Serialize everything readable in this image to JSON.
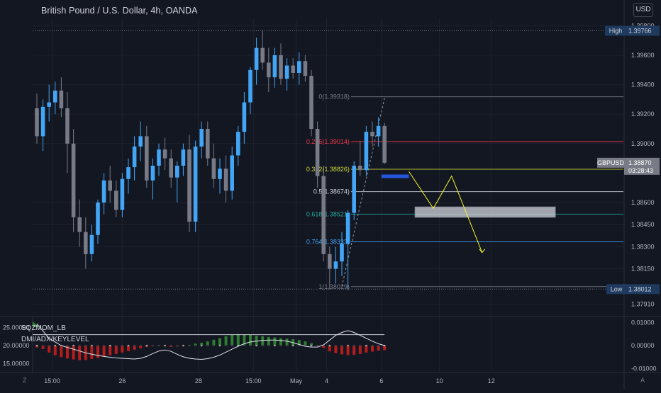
{
  "header": {
    "title": "British Pound / U.S. Dollar, 4h, OANDA",
    "currency_button": "USD"
  },
  "colors": {
    "background": "#131722",
    "bull": "#42a5f5",
    "bear": "#787b86",
    "grid": "#1e222d",
    "fib_0": "#787b86",
    "fib_0236": "#f23645",
    "fib_0382": "#cddc39",
    "fib_05": "#d1d4dc",
    "fib_0618": "#26a69a",
    "fib_0764": "#42a5f5",
    "projection": "#f5f52b",
    "zone": "#d1d4dc",
    "hist_pos": "#2e7d32",
    "hist_neg": "#b71c1c"
  },
  "chart_data": [
    {
      "type": "candlestick",
      "title": "British Pound / U.S. Dollar, 4h, OANDA",
      "symbol": "GBPUSD",
      "ylim": [
        1.3785,
        1.3985
      ],
      "y_ticks": [
        "1.39800",
        "1.39600",
        "1.39400",
        "1.39200",
        "1.39000",
        "1.38600",
        "1.38450",
        "1.38300",
        "1.38150",
        "1.37910"
      ],
      "y_tick_values": [
        1.398,
        1.396,
        1.394,
        1.392,
        1.39,
        1.386,
        1.3845,
        1.383,
        1.3815,
        1.3791
      ],
      "x_ticks": [
        "15:00",
        "26",
        "28",
        "15:00",
        "May",
        "4",
        "6",
        "10",
        "12"
      ],
      "x_tick_bars": [
        2.5,
        14,
        26.5,
        35.5,
        42.5,
        47.5,
        56.5,
        66,
        74.5
      ],
      "candles": [
        [
          1.3924,
          1.3934,
          1.39,
          1.3905
        ],
        [
          1.3905,
          1.393,
          1.3895,
          1.3925
        ],
        [
          1.3925,
          1.394,
          1.3915,
          1.3928
        ],
        [
          1.3928,
          1.3942,
          1.392,
          1.3936
        ],
        [
          1.3936,
          1.3945,
          1.3918,
          1.3924
        ],
        [
          1.3924,
          1.3935,
          1.388,
          1.39
        ],
        [
          1.39,
          1.391,
          1.384,
          1.385
        ],
        [
          1.385,
          1.3862,
          1.383,
          1.384
        ],
        [
          1.384,
          1.385,
          1.3815,
          1.3825
        ],
        [
          1.3825,
          1.3845,
          1.382,
          1.3838
        ],
        [
          1.3838,
          1.3862,
          1.3832,
          1.386
        ],
        [
          1.386,
          1.388,
          1.3852,
          1.3875
        ],
        [
          1.3875,
          1.3885,
          1.386,
          1.3868
        ],
        [
          1.3868,
          1.3875,
          1.385,
          1.3855
        ],
        [
          1.3855,
          1.388,
          1.385,
          1.3876
        ],
        [
          1.3876,
          1.389,
          1.3866,
          1.3884
        ],
        [
          1.3884,
          1.3905,
          1.3875,
          1.3898
        ],
        [
          1.3898,
          1.3915,
          1.3888,
          1.3905
        ],
        [
          1.3905,
          1.3912,
          1.387,
          1.3875
        ],
        [
          1.3875,
          1.389,
          1.3862,
          1.3885
        ],
        [
          1.3885,
          1.39,
          1.3878,
          1.3896
        ],
        [
          1.3896,
          1.3904,
          1.3882,
          1.389
        ],
        [
          1.389,
          1.3896,
          1.387,
          1.3877
        ],
        [
          1.3877,
          1.3888,
          1.386,
          1.3885
        ],
        [
          1.3885,
          1.39,
          1.3878,
          1.3896
        ],
        [
          1.3896,
          1.3906,
          1.384,
          1.3847
        ],
        [
          1.3847,
          1.3902,
          1.384,
          1.3898
        ],
        [
          1.3898,
          1.3915,
          1.389,
          1.391
        ],
        [
          1.391,
          1.3915,
          1.3885,
          1.389
        ],
        [
          1.389,
          1.39,
          1.387,
          1.3876
        ],
        [
          1.3876,
          1.389,
          1.3866,
          1.3883
        ],
        [
          1.3883,
          1.3892,
          1.386,
          1.3868
        ],
        [
          1.3868,
          1.3898,
          1.3862,
          1.3892
        ],
        [
          1.3892,
          1.3912,
          1.3885,
          1.3908
        ],
        [
          1.3908,
          1.3935,
          1.39,
          1.3928
        ],
        [
          1.3928,
          1.3952,
          1.392,
          1.395
        ],
        [
          1.395,
          1.3972,
          1.394,
          1.3965
        ],
        [
          1.3965,
          1.3977,
          1.395,
          1.3955
        ],
        [
          1.3955,
          1.3965,
          1.3935,
          1.3945
        ],
        [
          1.3945,
          1.3965,
          1.3938,
          1.396
        ],
        [
          1.396,
          1.3968,
          1.394,
          1.3944
        ],
        [
          1.3944,
          1.3958,
          1.3936,
          1.3953
        ],
        [
          1.3953,
          1.3958,
          1.3944,
          1.3948
        ],
        [
          1.3948,
          1.3962,
          1.394,
          1.3956
        ],
        [
          1.3956,
          1.396,
          1.3942,
          1.3946
        ],
        [
          1.3946,
          1.395,
          1.3905,
          1.391
        ],
        [
          1.391,
          1.3915,
          1.387,
          1.3878
        ],
        [
          1.3878,
          1.3885,
          1.382,
          1.3825
        ],
        [
          1.3825,
          1.383,
          1.3801,
          1.3815
        ],
        [
          1.3815,
          1.383,
          1.3805,
          1.382
        ],
        [
          1.382,
          1.384,
          1.381,
          1.3832
        ],
        [
          1.3832,
          1.3855,
          1.3801,
          1.3853
        ],
        [
          1.3853,
          1.3888,
          1.3848,
          1.3885
        ],
        [
          1.3885,
          1.3902,
          1.3878,
          1.3882
        ],
        [
          1.3882,
          1.3912,
          1.3878,
          1.3908
        ],
        [
          1.3908,
          1.3915,
          1.3898,
          1.3905
        ],
        [
          1.3905,
          1.3918,
          1.3898,
          1.3912
        ],
        [
          1.3912,
          1.3914,
          1.3886,
          1.3887
        ]
      ],
      "fib_levels": [
        {
          "ratio": "0",
          "label": "0(1.39318)",
          "price": 1.39318,
          "color_key": "fib_0"
        },
        {
          "ratio": "0.236",
          "label": "0.236(1.39014)",
          "price": 1.39014,
          "color_key": "fib_0236"
        },
        {
          "ratio": "0.382",
          "label": "0.382(1.38826)",
          "price": 1.38826,
          "color_key": "fib_0382"
        },
        {
          "ratio": "0.5",
          "label": "0.5(1.38674)",
          "price": 1.38674,
          "color_key": "fib_05"
        },
        {
          "ratio": "0.618",
          "label": "0.618(1.38521)",
          "price": 1.38521,
          "color_key": "fib_0618"
        },
        {
          "ratio": "0.764",
          "label": "0.764(1.38333)",
          "price": 1.38333,
          "color_key": "fib_0764"
        },
        {
          "ratio": "1",
          "label": "1(1.38029)",
          "price": 1.38029,
          "color_key": "fib_0"
        }
      ],
      "high": {
        "label": "High",
        "value": "1.39766",
        "price": 1.39766
      },
      "low": {
        "label": "Low",
        "value": "1.38012",
        "price": 1.38012
      },
      "last_price": {
        "symbol": "GBPUSD",
        "value": "1.38870",
        "price": 1.3887,
        "countdown": "03:28:43"
      },
      "projection_path": [
        [
          61,
          1.3881
        ],
        [
          65,
          1.3856
        ],
        [
          68,
          1.3878
        ],
        [
          73,
          1.3826
        ]
      ],
      "target_zone": {
        "x_bar_start": 62,
        "x_bar_end": 85,
        "price_top": 1.3857,
        "price_bottom": 1.385
      },
      "support_box": {
        "x_bar_start": 56.5,
        "x_bar_end": 61,
        "price_top": 1.3879,
        "price_bottom": 1.3877
      },
      "trend_line": [
        [
          50,
          1.3803
        ],
        [
          57,
          1.3931
        ]
      ]
    },
    {
      "type": "histogram",
      "title": "SQZMOM_LB",
      "left_ticks": [
        "25.00000",
        "20.00000",
        "15.00000"
      ],
      "left_tick_values": [
        25,
        20,
        15
      ],
      "right_ticks": [
        "0.01000",
        "0.00000",
        "-0.01000"
      ],
      "right_tick_values": [
        0.01,
        0.0,
        -0.01
      ],
      "ylim": [
        -0.011,
        0.011
      ],
      "values": [
        -0.0008,
        -0.0015,
        -0.003,
        -0.0042,
        -0.005,
        -0.0056,
        -0.006,
        -0.0063,
        -0.0062,
        -0.0058,
        -0.0054,
        -0.0048,
        -0.0042,
        -0.0036,
        -0.003,
        -0.0024,
        -0.0018,
        -0.0012,
        -0.0006,
        -0.0002,
        0.0002,
        -0.0003,
        -0.0006,
        -0.0004,
        -0.0002,
        0.0003,
        0.0008,
        0.0012,
        0.0018,
        0.0025,
        0.0032,
        0.004,
        0.0046,
        0.005,
        0.0048,
        0.0046,
        0.0042,
        0.004,
        0.0037,
        0.0035,
        0.0032,
        0.003,
        0.0028,
        0.0024,
        0.0018,
        0.001,
        -0.0003,
        -0.001,
        -0.0025,
        -0.0033,
        -0.0038,
        -0.0041,
        -0.004,
        -0.0036,
        -0.003,
        -0.0026,
        -0.0022,
        -0.002
      ]
    },
    {
      "type": "line",
      "title": "DMI/ADX/KEYLEVEL",
      "keylevel": 23,
      "values": [
        26,
        24,
        22,
        21,
        20,
        19.5,
        19,
        18.5,
        18,
        17.6,
        17.3,
        17,
        16.8,
        16.6,
        16.5,
        16.4,
        16.3,
        16.5,
        17,
        17.8,
        18.5,
        18.8,
        18.4,
        17.6,
        16.9,
        16.5,
        16.3,
        16.2,
        16.4,
        16.8,
        17.4,
        18.2,
        19.0,
        19.8,
        20.5,
        21.0,
        21.2,
        21.4,
        21.5,
        21.5,
        21.4,
        21.2,
        20.8,
        20.3,
        19.8,
        19.6,
        19.6,
        20.2,
        21.5,
        22.8,
        23.6,
        24.1,
        23.6,
        22.8,
        22.0,
        21.2,
        20.5,
        20.0
      ]
    }
  ],
  "price_axis": {
    "high_label": "High",
    "high_value": "1.39766",
    "low_label": "Low",
    "low_value": "1.38012",
    "symbol_tag": "GBPUSD",
    "last_value": "1.38870",
    "countdown": "03:28:43"
  },
  "time_axis": {
    "labels": [
      "15:00",
      "26",
      "28",
      "15:00",
      "May",
      "4",
      "6",
      "10",
      "12"
    ]
  },
  "indicators": {
    "sqz_label": "SQZMOM_LB",
    "dmi_label": "DMI/ADX/KEYLEVEL"
  },
  "corners": {
    "left_icon": "Z",
    "right_icon": "A"
  }
}
